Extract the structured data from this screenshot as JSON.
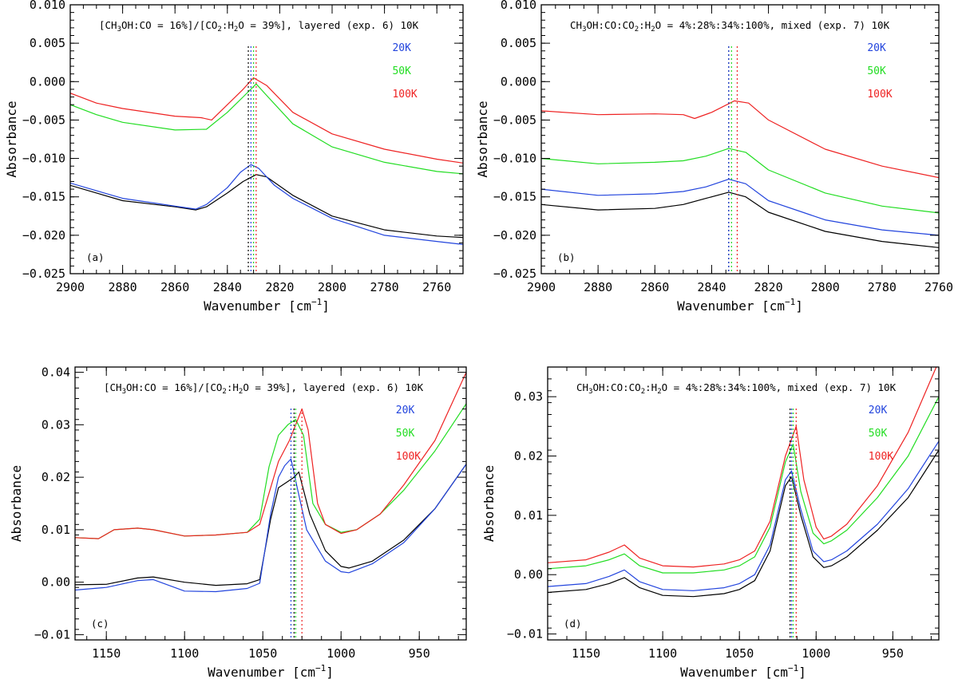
{
  "colors": {
    "10K": "#000000",
    "20K": "#2244dd",
    "50K": "#22dd22",
    "100K": "#ee2222"
  },
  "chart_data": [
    {
      "type": "line",
      "panel_label": "(a)",
      "title_parts": [
        "[CH",
        "3",
        "OH:CO = 16%]/[CO",
        "2",
        ":H",
        "2",
        "O = 39%], layered (exp. 6)  10K"
      ],
      "xlabel": "Wavenumber [cm",
      "xlabel_sup": "−1",
      "xlabel_end": "]",
      "ylabel": "Absorbance",
      "xlim": [
        2900,
        2750
      ],
      "ylim": [
        -0.025,
        0.01
      ],
      "xticks": [
        2900,
        2880,
        2860,
        2840,
        2820,
        2800,
        2780,
        2760
      ],
      "xtick_labels": [
        "2900",
        "2880",
        "2860",
        "2840",
        "2820",
        "2800",
        "2780",
        "2760"
      ],
      "yticks": [
        -0.025,
        -0.02,
        -0.015,
        -0.01,
        -0.005,
        0.0,
        0.005,
        0.01
      ],
      "ytick_labels": [
        "−0.025",
        "−0.020",
        "−0.015",
        "−0.010",
        "−0.005",
        "0.000",
        "0.005",
        "0.010"
      ],
      "legend": [
        {
          "label": "20K",
          "key": "20K"
        },
        {
          "label": "50K",
          "key": "50K"
        },
        {
          "label": "100K",
          "key": "100K"
        }
      ],
      "vlines": [
        {
          "x": 2832,
          "key": "10K"
        },
        {
          "x": 2831,
          "key": "20K"
        },
        {
          "x": 2830,
          "key": "50K"
        },
        {
          "x": 2829,
          "key": "100K"
        }
      ],
      "series": [
        {
          "name": "10K",
          "key": "10K",
          "x": [
            2900,
            2880,
            2860,
            2852,
            2848,
            2840,
            2834,
            2829,
            2825,
            2815,
            2800,
            2780,
            2760,
            2750
          ],
          "y": [
            -0.0135,
            -0.0155,
            -0.0163,
            -0.0167,
            -0.0163,
            -0.0145,
            -0.013,
            -0.0121,
            -0.0124,
            -0.0148,
            -0.0175,
            -0.0193,
            -0.0201,
            -0.0203
          ]
        },
        {
          "name": "20K",
          "key": "20K",
          "x": [
            2900,
            2880,
            2860,
            2852,
            2848,
            2840,
            2835,
            2831,
            2828,
            2822,
            2815,
            2800,
            2780,
            2760,
            2750
          ],
          "y": [
            -0.0132,
            -0.0152,
            -0.0162,
            -0.0166,
            -0.016,
            -0.0138,
            -0.0118,
            -0.0108,
            -0.0113,
            -0.0135,
            -0.0152,
            -0.0178,
            -0.02,
            -0.0208,
            -0.0212
          ]
        },
        {
          "name": "50K",
          "key": "50K",
          "x": [
            2900,
            2890,
            2880,
            2860,
            2848,
            2840,
            2834,
            2829,
            2825,
            2815,
            2800,
            2780,
            2760,
            2750
          ],
          "y": [
            -0.003,
            -0.0043,
            -0.0053,
            -0.0063,
            -0.0062,
            -0.004,
            -0.002,
            -0.0003,
            -0.0018,
            -0.0055,
            -0.0085,
            -0.0105,
            -0.0117,
            -0.012
          ]
        },
        {
          "name": "100K",
          "key": "100K",
          "x": [
            2900,
            2890,
            2880,
            2860,
            2850,
            2846,
            2840,
            2834,
            2830,
            2825,
            2815,
            2800,
            2780,
            2760,
            2750
          ],
          "y": [
            -0.0015,
            -0.0028,
            -0.0035,
            -0.0045,
            -0.0047,
            -0.005,
            -0.003,
            -0.001,
            0.0005,
            -0.0005,
            -0.004,
            -0.0068,
            -0.0088,
            -0.0101,
            -0.0106
          ]
        }
      ]
    },
    {
      "type": "line",
      "panel_label": "(b)",
      "title_parts": [
        "CH",
        "3",
        "OH:CO:CO",
        "2",
        ":H",
        "2",
        "O = 4%:28%:34%:100%, mixed (exp. 7)  10K"
      ],
      "xlabel": "Wavenumber [cm",
      "xlabel_sup": "−1",
      "xlabel_end": "]",
      "ylabel": "Absorbance",
      "xlim": [
        2900,
        2760
      ],
      "ylim": [
        -0.025,
        0.01
      ],
      "xticks": [
        2900,
        2880,
        2860,
        2840,
        2820,
        2800,
        2780,
        2760
      ],
      "xtick_labels": [
        "2900",
        "2880",
        "2860",
        "2840",
        "2820",
        "2800",
        "2780",
        "2760"
      ],
      "yticks": [
        -0.025,
        -0.02,
        -0.015,
        -0.01,
        -0.005,
        0.0,
        0.005,
        0.01
      ],
      "ytick_labels": [
        "−0.025",
        "−0.020",
        "−0.015",
        "−0.010",
        "−0.005",
        "0.000",
        "0.005",
        "0.010"
      ],
      "legend": [
        {
          "label": "20K",
          "key": "20K"
        },
        {
          "label": "50K",
          "key": "50K"
        },
        {
          "label": "100K",
          "key": "100K"
        }
      ],
      "vlines": [
        {
          "x": 2834,
          "key": "10K"
        },
        {
          "x": 2834,
          "key": "20K"
        },
        {
          "x": 2833,
          "key": "50K"
        },
        {
          "x": 2831,
          "key": "100K"
        }
      ],
      "series": [
        {
          "name": "10K",
          "key": "10K",
          "x": [
            2900,
            2880,
            2860,
            2850,
            2842,
            2834,
            2828,
            2820,
            2800,
            2780,
            2760
          ],
          "y": [
            -0.016,
            -0.0167,
            -0.0165,
            -0.016,
            -0.0152,
            -0.0144,
            -0.015,
            -0.017,
            -0.0195,
            -0.0208,
            -0.0216
          ]
        },
        {
          "name": "20K",
          "key": "20K",
          "x": [
            2900,
            2880,
            2860,
            2850,
            2842,
            2834,
            2828,
            2820,
            2800,
            2780,
            2760
          ],
          "y": [
            -0.014,
            -0.0148,
            -0.0146,
            -0.0143,
            -0.0137,
            -0.0127,
            -0.0133,
            -0.0155,
            -0.018,
            -0.0193,
            -0.02
          ]
        },
        {
          "name": "50K",
          "key": "50K",
          "x": [
            2900,
            2880,
            2860,
            2850,
            2842,
            2834,
            2828,
            2820,
            2800,
            2780,
            2760
          ],
          "y": [
            -0.01,
            -0.0107,
            -0.0105,
            -0.0103,
            -0.0097,
            -0.0087,
            -0.0092,
            -0.0115,
            -0.0145,
            -0.0162,
            -0.0171
          ]
        },
        {
          "name": "100K",
          "key": "100K",
          "x": [
            2900,
            2880,
            2860,
            2850,
            2846,
            2840,
            2832,
            2827,
            2820,
            2800,
            2780,
            2760
          ],
          "y": [
            -0.0038,
            -0.0043,
            -0.0042,
            -0.0043,
            -0.0048,
            -0.004,
            -0.0025,
            -0.0028,
            -0.005,
            -0.0088,
            -0.011,
            -0.0125
          ]
        }
      ]
    },
    {
      "type": "line",
      "panel_label": "(c)",
      "title_parts": [
        "[CH",
        "3",
        "OH:CO = 16%]/[CO",
        "2",
        ":H",
        "2",
        "O = 39%], layered (exp. 6) 10K"
      ],
      "xlabel": "Wavenumber [cm",
      "xlabel_sup": "−1",
      "xlabel_end": "]",
      "ylabel": "Absorbance",
      "xlim": [
        1170,
        920
      ],
      "ylim": [
        -0.011,
        0.041
      ],
      "xticks": [
        1150,
        1100,
        1050,
        1000,
        950
      ],
      "xtick_labels": [
        "1150",
        "1100",
        "1050",
        "1000",
        "950"
      ],
      "yticks": [
        -0.01,
        0.0,
        0.01,
        0.02,
        0.03,
        0.04
      ],
      "ytick_labels": [
        "−0.01",
        "0.00",
        "0.01",
        "0.02",
        "0.03",
        "0.04"
      ],
      "legend": [
        {
          "label": "20K",
          "key": "20K"
        },
        {
          "label": "50K",
          "key": "50K"
        },
        {
          "label": "100K",
          "key": "100K"
        }
      ],
      "vlines": [
        {
          "x": 1032,
          "key": "20K"
        },
        {
          "x": 1030,
          "key": "10K"
        },
        {
          "x": 1029,
          "key": "50K"
        },
        {
          "x": 1025,
          "key": "100K"
        }
      ],
      "series": [
        {
          "name": "10K",
          "key": "10K",
          "x": [
            1170,
            1150,
            1130,
            1120,
            1100,
            1080,
            1060,
            1052,
            1045,
            1040,
            1035,
            1030,
            1027,
            1020,
            1010,
            1000,
            995,
            980,
            960,
            940,
            920
          ],
          "y": [
            -0.0005,
            -0.0004,
            0.0008,
            0.001,
            0.0,
            -0.0006,
            -0.0003,
            0.0005,
            0.012,
            0.018,
            0.019,
            0.02,
            0.021,
            0.013,
            0.006,
            0.003,
            0.0027,
            0.004,
            0.008,
            0.014,
            0.0225
          ]
        },
        {
          "name": "20K",
          "key": "20K",
          "x": [
            1170,
            1150,
            1130,
            1120,
            1100,
            1080,
            1060,
            1052,
            1045,
            1040,
            1036,
            1032,
            1028,
            1022,
            1010,
            1000,
            995,
            980,
            960,
            940,
            920
          ],
          "y": [
            -0.0015,
            -0.001,
            0.0003,
            0.0005,
            -0.0017,
            -0.0018,
            -0.0012,
            -0.0002,
            0.013,
            0.02,
            0.0222,
            0.0235,
            0.018,
            0.01,
            0.004,
            0.002,
            0.0018,
            0.0035,
            0.0075,
            0.014,
            0.0225
          ]
        },
        {
          "name": "50K",
          "key": "50K",
          "x": [
            1170,
            1155,
            1145,
            1130,
            1120,
            1100,
            1080,
            1060,
            1052,
            1046,
            1040,
            1034,
            1029,
            1024,
            1018,
            1010,
            1000,
            990,
            975,
            960,
            940,
            920
          ],
          "y": [
            0.0085,
            0.0083,
            0.01,
            0.0103,
            0.01,
            0.0088,
            0.009,
            0.0095,
            0.012,
            0.022,
            0.028,
            0.03,
            0.031,
            0.028,
            0.015,
            0.011,
            0.0095,
            0.01,
            0.013,
            0.0175,
            0.025,
            0.034
          ]
        },
        {
          "name": "100K",
          "key": "100K",
          "x": [
            1170,
            1155,
            1145,
            1130,
            1120,
            1100,
            1080,
            1060,
            1052,
            1045,
            1040,
            1033,
            1029,
            1025,
            1021,
            1015,
            1010,
            1000,
            990,
            975,
            960,
            940,
            920
          ],
          "y": [
            0.0085,
            0.0083,
            0.01,
            0.0103,
            0.01,
            0.0088,
            0.009,
            0.0095,
            0.011,
            0.018,
            0.023,
            0.027,
            0.03,
            0.033,
            0.029,
            0.015,
            0.011,
            0.0093,
            0.01,
            0.013,
            0.0185,
            0.027,
            0.04
          ]
        }
      ]
    },
    {
      "type": "line",
      "panel_label": "(d)",
      "title_parts": [
        "CH",
        "3",
        "OH:CO:CO",
        "2",
        ":H",
        "2",
        "O = 4%:28%:34%:100%, mixed (exp. 7) 10K"
      ],
      "xlabel": "Wavenumber [cm",
      "xlabel_sup": "−1",
      "xlabel_end": "]",
      "ylabel": "Absorbance",
      "xlim": [
        1175,
        920
      ],
      "ylim": [
        -0.011,
        0.035
      ],
      "xticks": [
        1150,
        1100,
        1050,
        1000,
        950
      ],
      "xtick_labels": [
        "1150",
        "1100",
        "1050",
        "1000",
        "950"
      ],
      "yticks": [
        -0.01,
        0.0,
        0.01,
        0.02,
        0.03
      ],
      "ytick_labels": [
        "−0.01",
        "0.00",
        "0.01",
        "0.02",
        "0.03"
      ],
      "legend": [
        {
          "label": "20K",
          "key": "20K"
        },
        {
          "label": "50K",
          "key": "50K"
        },
        {
          "label": "100K",
          "key": "100K"
        }
      ],
      "vlines": [
        {
          "x": 1017,
          "key": "10K"
        },
        {
          "x": 1016,
          "key": "20K"
        },
        {
          "x": 1015,
          "key": "50K"
        },
        {
          "x": 1013,
          "key": "100K"
        }
      ],
      "series": [
        {
          "name": "10K",
          "key": "10K",
          "x": [
            1175,
            1150,
            1135,
            1125,
            1115,
            1100,
            1080,
            1060,
            1050,
            1040,
            1030,
            1020,
            1016,
            1010,
            1002,
            995,
            990,
            980,
            960,
            940,
            920
          ],
          "y": [
            -0.003,
            -0.0025,
            -0.0015,
            -0.0005,
            -0.0022,
            -0.0035,
            -0.0037,
            -0.0032,
            -0.0025,
            -0.001,
            0.004,
            0.015,
            0.0165,
            0.01,
            0.003,
            0.0012,
            0.0015,
            0.003,
            0.0075,
            0.013,
            0.021
          ]
        },
        {
          "name": "20K",
          "key": "20K",
          "x": [
            1175,
            1150,
            1135,
            1125,
            1115,
            1100,
            1080,
            1060,
            1050,
            1040,
            1030,
            1020,
            1016,
            1010,
            1002,
            995,
            990,
            980,
            960,
            940,
            920
          ],
          "y": [
            -0.002,
            -0.0015,
            -0.0003,
            0.0008,
            -0.0012,
            -0.0025,
            -0.0027,
            -0.0022,
            -0.0015,
            0.0,
            0.005,
            0.016,
            0.0175,
            0.011,
            0.004,
            0.0022,
            0.0025,
            0.004,
            0.0085,
            0.0145,
            0.0225
          ]
        },
        {
          "name": "50K",
          "key": "50K",
          "x": [
            1175,
            1150,
            1135,
            1125,
            1115,
            1100,
            1080,
            1060,
            1050,
            1040,
            1030,
            1020,
            1015,
            1010,
            1002,
            995,
            990,
            980,
            960,
            940,
            920
          ],
          "y": [
            0.001,
            0.0015,
            0.0025,
            0.0035,
            0.0015,
            0.0003,
            0.0003,
            0.0008,
            0.0015,
            0.003,
            0.008,
            0.019,
            0.022,
            0.014,
            0.007,
            0.0052,
            0.0057,
            0.0075,
            0.013,
            0.02,
            0.03
          ]
        },
        {
          "name": "100K",
          "key": "100K",
          "x": [
            1175,
            1150,
            1135,
            1125,
            1115,
            1100,
            1080,
            1060,
            1050,
            1040,
            1030,
            1020,
            1013,
            1008,
            1000,
            995,
            990,
            980,
            960,
            940,
            920
          ],
          "y": [
            0.002,
            0.0025,
            0.0038,
            0.005,
            0.0028,
            0.0015,
            0.0013,
            0.0018,
            0.0025,
            0.004,
            0.009,
            0.02,
            0.025,
            0.016,
            0.008,
            0.006,
            0.0065,
            0.0085,
            0.015,
            0.024,
            0.036
          ]
        }
      ]
    }
  ]
}
